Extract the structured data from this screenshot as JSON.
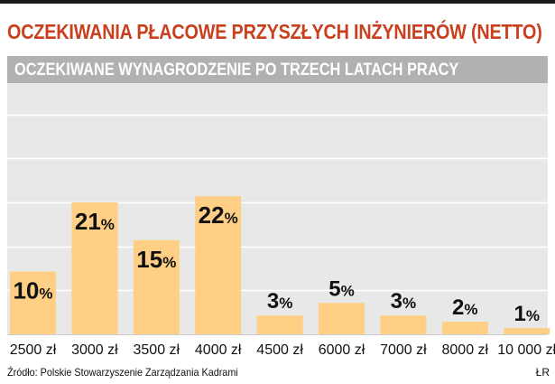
{
  "chart_data": {
    "type": "bar",
    "title": "OCZEKIWANIA PŁACOWE PRZYSZŁYCH INŻYNIERÓW (NETTO)",
    "subtitle": "OCZEKIWANE WYNAGRODZENIE PO TRZECH LATACH PRACY",
    "categories": [
      "2500 zł",
      "3000 zł",
      "3500 zł",
      "4000 zł",
      "4500 zł",
      "6000 zł",
      "7000 zł",
      "8000 zł",
      "10 000 zł"
    ],
    "values": [
      10,
      21,
      15,
      22,
      3,
      5,
      3,
      2,
      1
    ],
    "value_suffix": "%",
    "ylim": [
      0,
      30
    ],
    "grid": true,
    "xlabel": "",
    "ylabel": ""
  },
  "colors": {
    "title": "#c8401e",
    "bar": "#fecf85",
    "background": "#e8e8e8",
    "grid": "#ffffff",
    "subtitle_bar": "#b1b1b1"
  },
  "footer": {
    "source": "Źródło: Polskie Stowarzyszenie Zarządzania Kadrami",
    "initials": "ŁR"
  }
}
